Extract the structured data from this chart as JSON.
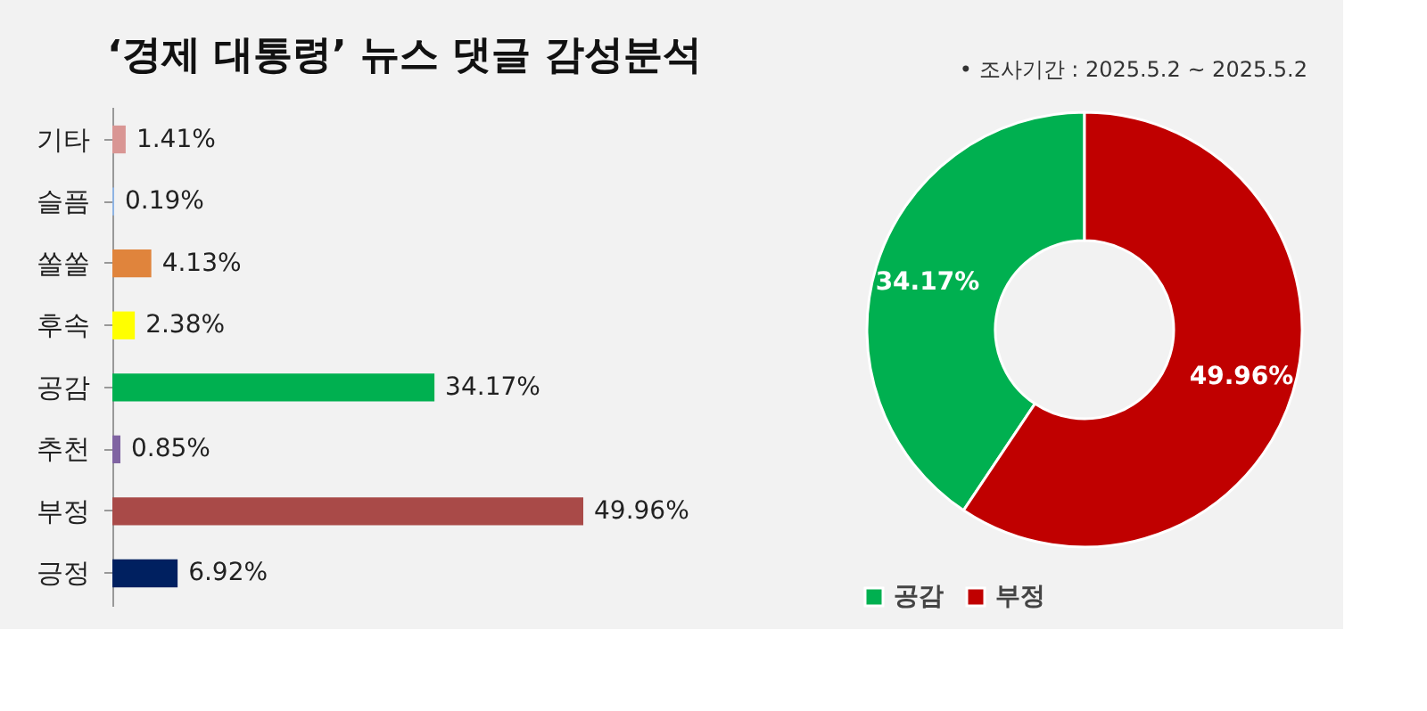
{
  "chart_data": [
    {
      "type": "bar",
      "orientation": "horizontal",
      "title": "‘경제 대통령’ 뉴스 댓글 감성분석",
      "categories": [
        "기타",
        "슬픔",
        "쏠쏠",
        "후속",
        "공감",
        "추천",
        "부정",
        "긍정"
      ],
      "values": [
        1.41,
        0.19,
        4.13,
        2.38,
        34.17,
        0.85,
        49.96,
        6.92
      ],
      "colors": [
        "#d99694",
        "#8eb4e3",
        "#e0843c",
        "#ffff00",
        "#00b050",
        "#8064a2",
        "#a94a48",
        "#002060"
      ],
      "value_labels": [
        "1.41%",
        "0.19%",
        "4.13%",
        "2.38%",
        "34.17%",
        "0.85%",
        "49.96%",
        "6.92%"
      ],
      "grid": false
    },
    {
      "type": "donut",
      "annotations": [
        "•   조사기간 : 2025.5.2 ~ 2025.5.2"
      ],
      "categories": [
        "공감",
        "부정"
      ],
      "values": [
        34.17,
        49.96
      ],
      "colors": [
        "#00b050",
        "#c00000"
      ],
      "value_labels": [
        "34.17%",
        "49.96%"
      ],
      "legend": "bottom"
    }
  ]
}
